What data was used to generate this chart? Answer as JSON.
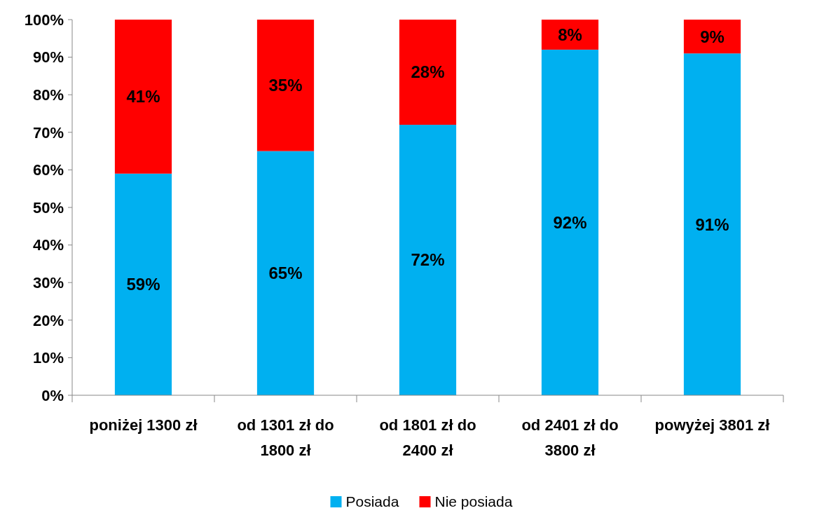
{
  "chart_data": {
    "type": "bar",
    "stacked": true,
    "categories": [
      "poniżej 1300 zł",
      "od 1301 zł do 1800 zł",
      "od 1801 zł do 2400 zł",
      "od 2401 zł do 3800 zł",
      "powyżej 3801 zł"
    ],
    "series": [
      {
        "name": "Posiada",
        "color": "#00b0f0",
        "values": [
          59,
          65,
          72,
          92,
          91
        ],
        "value_labels": [
          "59%",
          "65%",
          "72%",
          "92%",
          "91%"
        ]
      },
      {
        "name": "Nie posiada",
        "color": "#ff0000",
        "values": [
          41,
          35,
          28,
          8,
          9
        ],
        "value_labels": [
          "41%",
          "35%",
          "28%",
          "8%",
          "9%"
        ]
      }
    ],
    "ylim": [
      0,
      100
    ],
    "yticks": [
      {
        "value": 0,
        "label": "0%"
      },
      {
        "value": 10,
        "label": "10%"
      },
      {
        "value": 20,
        "label": "20%"
      },
      {
        "value": 30,
        "label": "30%"
      },
      {
        "value": 40,
        "label": "40%"
      },
      {
        "value": 50,
        "label": "50%"
      },
      {
        "value": 60,
        "label": "60%"
      },
      {
        "value": 70,
        "label": "70%"
      },
      {
        "value": 80,
        "label": "80%"
      },
      {
        "value": 90,
        "label": "90%"
      },
      {
        "value": 100,
        "label": "100%"
      }
    ],
    "legend": "bottom",
    "grid": false
  }
}
